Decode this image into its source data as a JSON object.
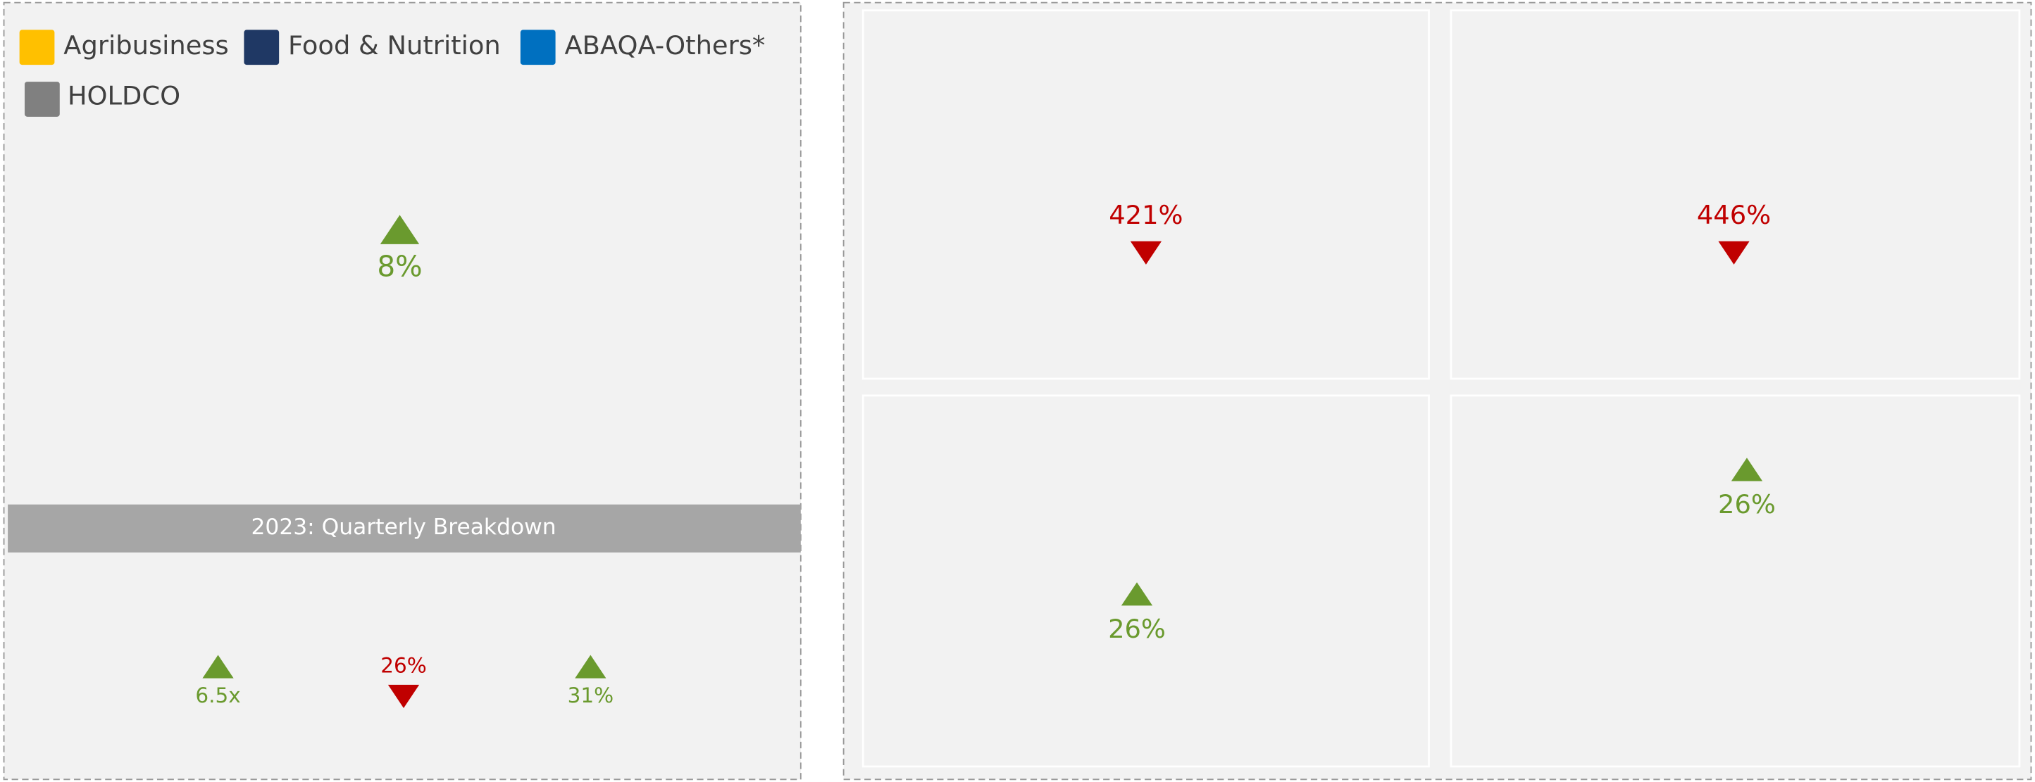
{
  "legend": [
    {
      "label": "Agribusiness",
      "color": "#ffc000"
    },
    {
      "label": "Food & Nutrition",
      "color": "#1f3864"
    },
    {
      "label": "ABAQA-Others*",
      "color": "#0070c0"
    },
    {
      "label": "HOLDCO",
      "color": "#808080"
    }
  ],
  "summary": {
    "value": "8%",
    "direction": "up"
  },
  "band": {
    "title": "2023: Quarterly Breakdown"
  },
  "quarterly": [
    {
      "value": "6.5x",
      "direction": "up"
    },
    {
      "value": "26%",
      "direction": "down"
    },
    {
      "value": "31%",
      "direction": "up"
    }
  ],
  "tiles": [
    {
      "value": "421%",
      "direction": "down"
    },
    {
      "value": "446%",
      "direction": "down"
    },
    {
      "value": "26%",
      "direction": "up"
    },
    {
      "value": "26%",
      "direction": "up"
    }
  ]
}
